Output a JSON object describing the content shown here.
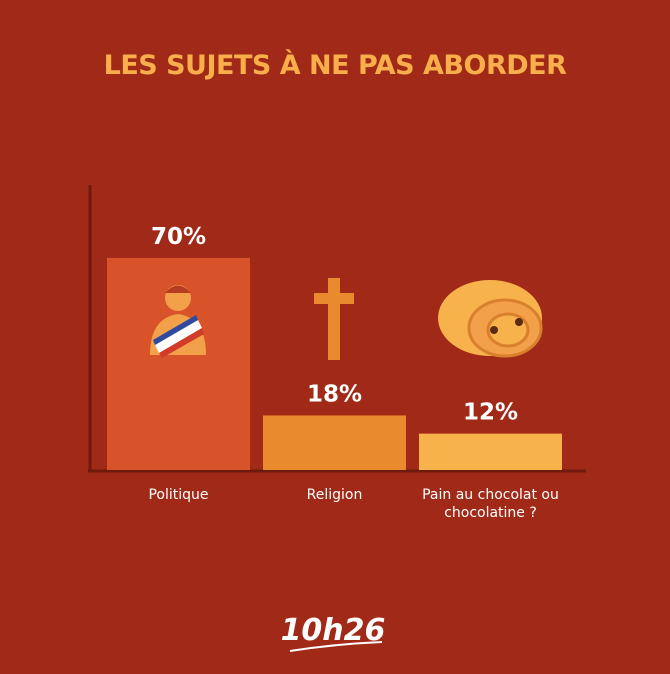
{
  "chart_data": {
    "type": "bar",
    "title": "LES SUJETS À NE PAS ABORDER",
    "categories": [
      "Politique",
      "Religion",
      "Pain au chocolat ou chocolatine ?"
    ],
    "values": [
      70,
      18,
      12
    ],
    "value_labels": [
      "70%",
      "18%",
      "12%"
    ],
    "colors": [
      "#d8532a",
      "#e98a2f",
      "#f8b24c"
    ]
  },
  "brand": "10h26"
}
